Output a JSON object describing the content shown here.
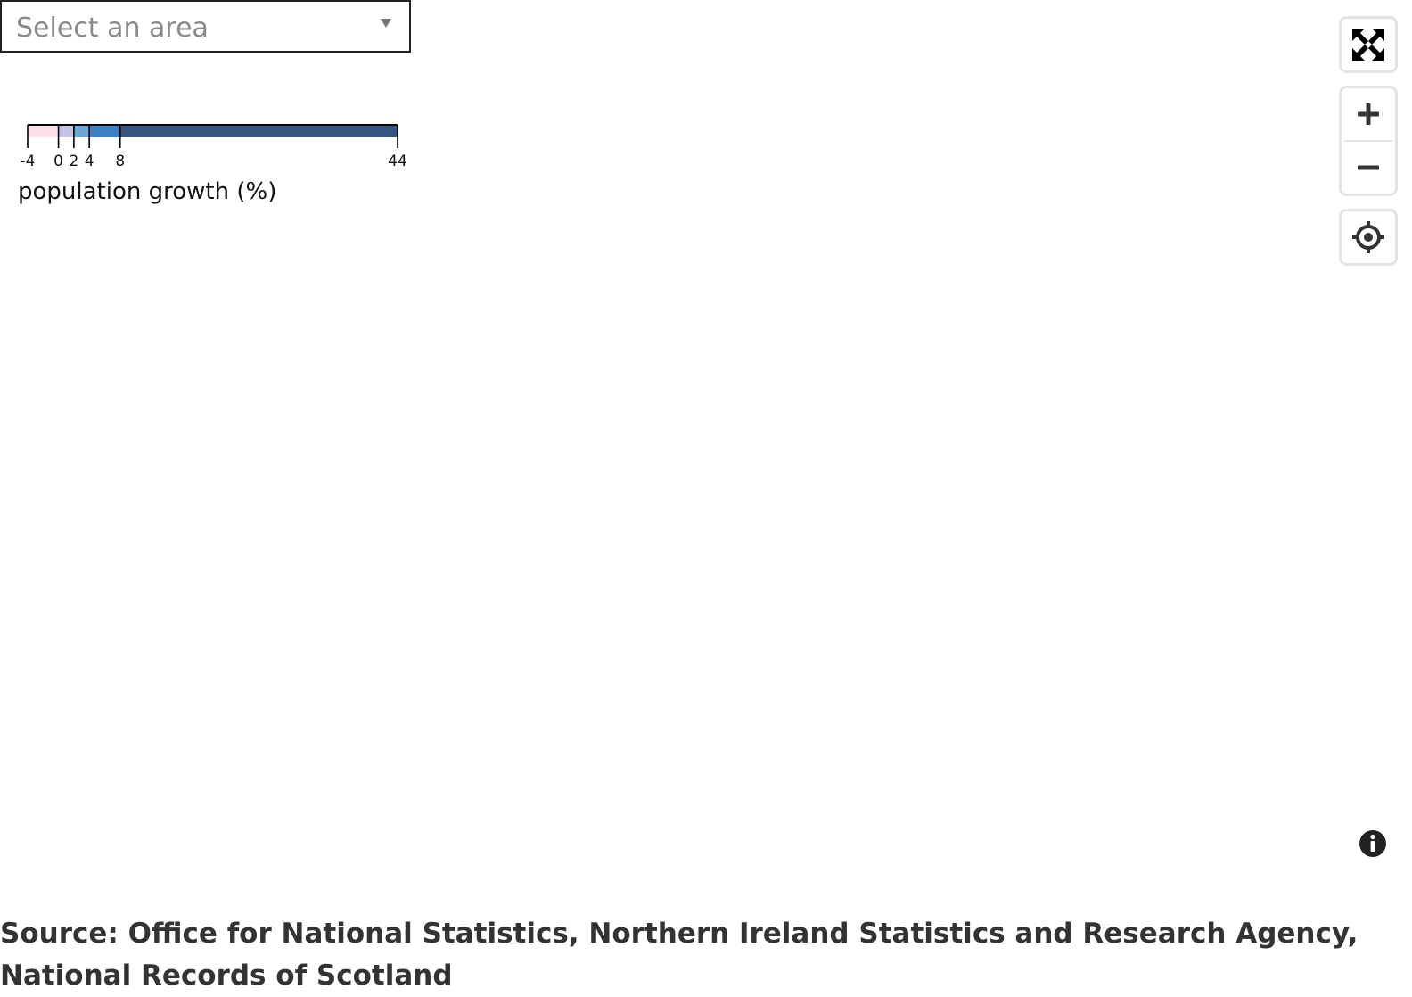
{
  "area_select": {
    "placeholder": "Select an area",
    "arrow_icon": "triangle-down-icon"
  },
  "legend": {
    "title": "population growth (%)",
    "breaks": [
      -4,
      0,
      2,
      4,
      8,
      44
    ],
    "tick_labels": [
      "-4",
      "0",
      "2",
      "4",
      "8",
      "44"
    ],
    "colors": [
      "#fbe0ec",
      "#c4c4e6",
      "#6aa6d6",
      "#3b82c4",
      "#34557f"
    ]
  },
  "controls": {
    "fullscreen_icon": "fullscreen-icon",
    "zoom_in_icon": "plus-icon",
    "zoom_out_icon": "minus-icon",
    "locate_icon": "crosshair-icon",
    "info_icon": "info-icon"
  },
  "source": {
    "text": "Source: Office for National Statistics, Northern Ireland Statistics and Research Agency, National Records of Scotland"
  }
}
